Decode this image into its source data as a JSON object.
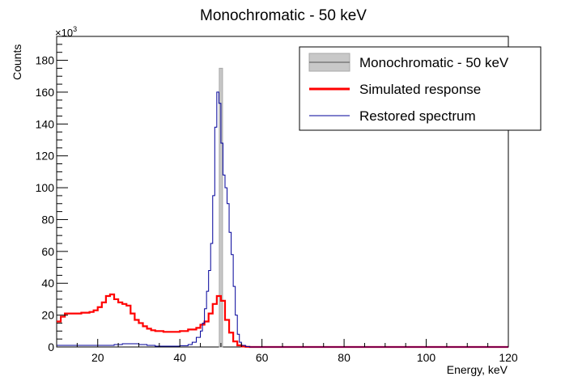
{
  "chart_data": {
    "type": "histogram",
    "title": "Monochromatic - 50 keV",
    "xlabel": "Energy, keV",
    "ylabel": "Counts",
    "y_multiplier": "×10",
    "y_multiplier_exp": "3",
    "xlim": [
      10,
      120
    ],
    "ylim": [
      0,
      195
    ],
    "x_ticks": [
      20,
      40,
      60,
      80,
      100,
      120
    ],
    "y_ticks": [
      0,
      20,
      40,
      60,
      80,
      100,
      120,
      140,
      160,
      180
    ],
    "legend_position": "top-right",
    "series": [
      {
        "name": "Monochromatic - 50 keV",
        "kind": "bar",
        "color": "#a9a9a9",
        "fill": "#c8c8c8",
        "bars": [
          {
            "x0": 49.6,
            "x1": 50.4,
            "y": 175
          }
        ]
      },
      {
        "name": "Simulated response",
        "kind": "step",
        "color": "#ff0000",
        "points": [
          [
            10,
            16
          ],
          [
            11,
            19
          ],
          [
            12,
            21
          ],
          [
            14,
            21
          ],
          [
            16,
            21.5
          ],
          [
            18,
            22
          ],
          [
            19,
            23
          ],
          [
            20,
            25
          ],
          [
            21,
            28
          ],
          [
            22,
            32
          ],
          [
            23,
            33
          ],
          [
            24,
            30
          ],
          [
            25,
            28
          ],
          [
            26,
            27
          ],
          [
            27,
            26
          ],
          [
            28,
            21
          ],
          [
            29,
            17
          ],
          [
            30,
            15
          ],
          [
            31,
            13
          ],
          [
            32,
            11.5
          ],
          [
            33,
            10.5
          ],
          [
            34,
            10
          ],
          [
            36,
            9.5
          ],
          [
            38,
            9.5
          ],
          [
            40,
            10
          ],
          [
            42,
            11
          ],
          [
            44,
            12
          ],
          [
            45,
            14
          ],
          [
            46,
            16
          ],
          [
            47,
            21
          ],
          [
            48,
            27
          ],
          [
            49,
            32
          ],
          [
            50,
            29
          ],
          [
            51,
            17
          ],
          [
            52,
            9
          ],
          [
            53,
            3.5
          ],
          [
            54,
            1
          ],
          [
            55,
            0.3
          ],
          [
            56,
            0.1
          ],
          [
            57,
            0
          ],
          [
            120,
            0
          ]
        ]
      },
      {
        "name": "Restored spectrum",
        "kind": "step",
        "color": "#000099",
        "points": [
          [
            10,
            1
          ],
          [
            20,
            1
          ],
          [
            22,
            1
          ],
          [
            24,
            1.5
          ],
          [
            26,
            2
          ],
          [
            28,
            2
          ],
          [
            30,
            1.5
          ],
          [
            32,
            1
          ],
          [
            34,
            0.5
          ],
          [
            36,
            0.5
          ],
          [
            40,
            0.8
          ],
          [
            42,
            1.5
          ],
          [
            43,
            3
          ],
          [
            44,
            6
          ],
          [
            45,
            10
          ],
          [
            45.5,
            15
          ],
          [
            46,
            24
          ],
          [
            46.5,
            35
          ],
          [
            47,
            48
          ],
          [
            47.5,
            65
          ],
          [
            48,
            95
          ],
          [
            48.5,
            138
          ],
          [
            49,
            160
          ],
          [
            49.5,
            153
          ],
          [
            50,
            128
          ],
          [
            50.5,
            108
          ],
          [
            51,
            100
          ],
          [
            51.5,
            90
          ],
          [
            52,
            72
          ],
          [
            52.5,
            58
          ],
          [
            53,
            38
          ],
          [
            53.5,
            20
          ],
          [
            54,
            8
          ],
          [
            54.5,
            3
          ],
          [
            55,
            1
          ],
          [
            56,
            0.3
          ],
          [
            57,
            0
          ],
          [
            120,
            0
          ]
        ]
      }
    ]
  }
}
